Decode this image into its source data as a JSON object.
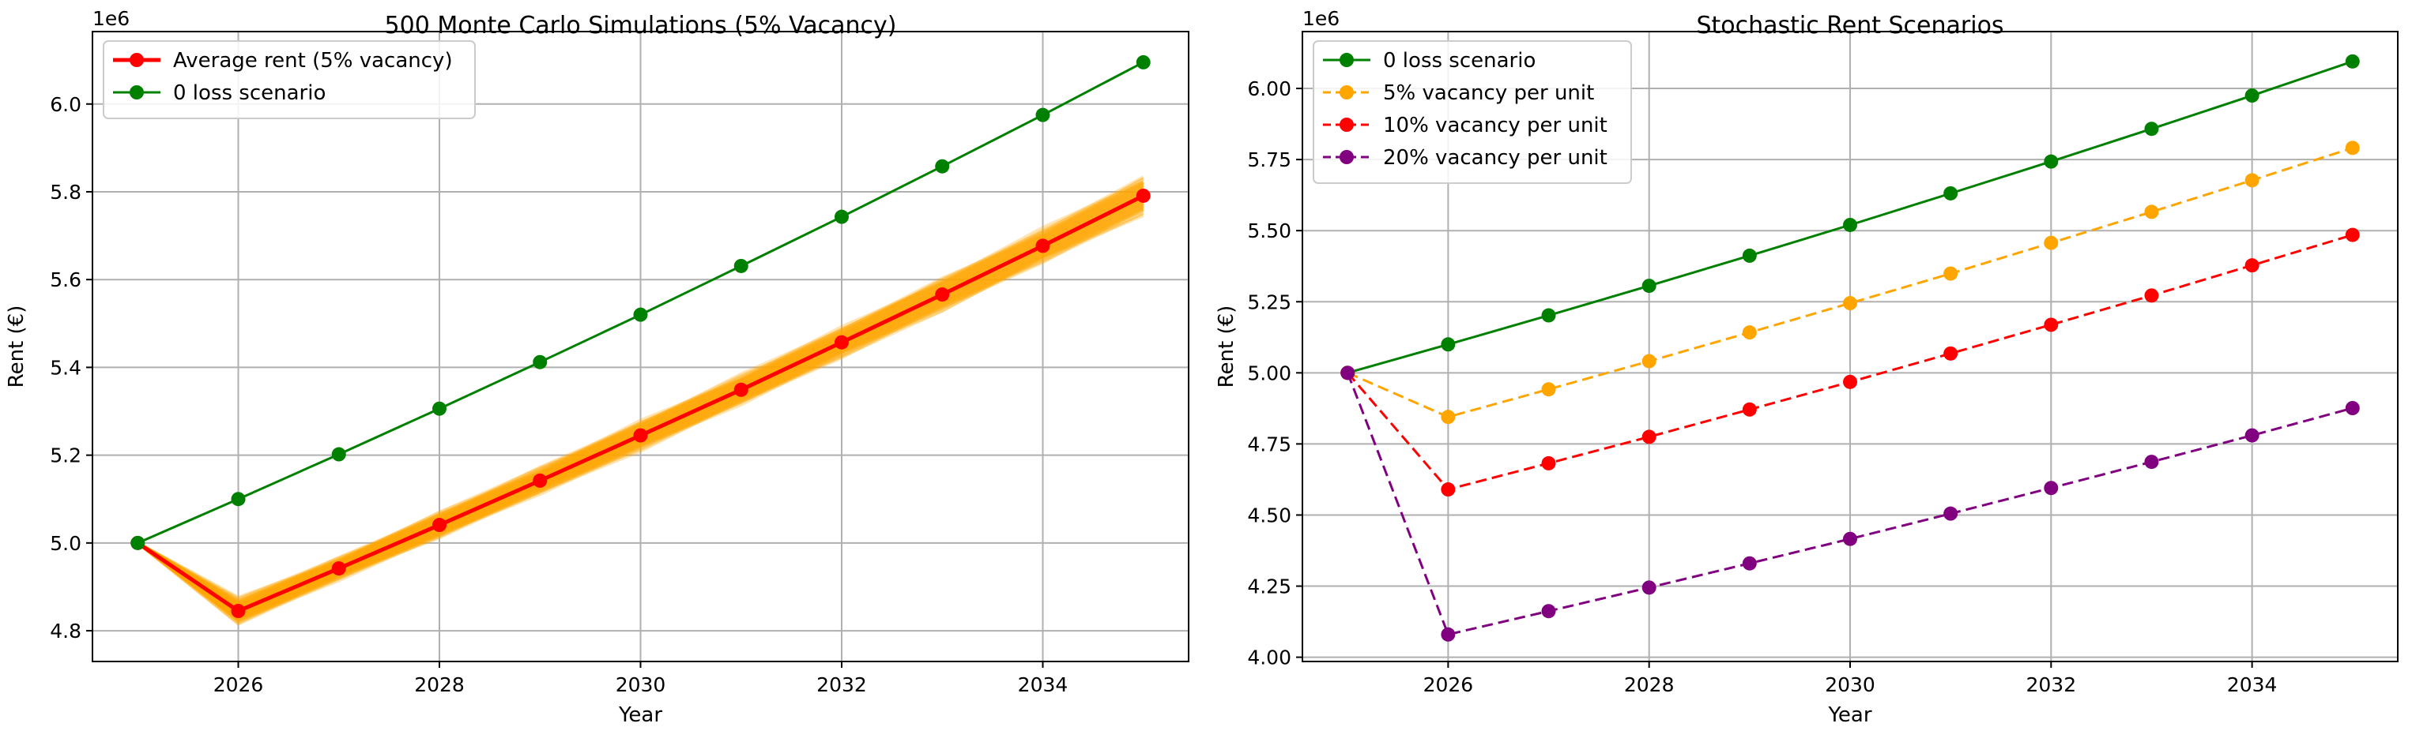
{
  "chart_data": [
    {
      "type": "line",
      "title": "500 Monte Carlo Simulations (5% Vacancy)",
      "xlabel": "Year",
      "ylabel": "Rent (€)",
      "y_offset_label": "1e6",
      "xlim": [
        2024.55,
        2035.45
      ],
      "ylim": [
        4.73,
        6.165
      ],
      "xticks": [
        2026,
        2028,
        2030,
        2032,
        2034
      ],
      "yticks": [
        4.8,
        5.0,
        5.2,
        5.4,
        5.6,
        5.8,
        6.0
      ],
      "ytick_labels": [
        "4.8",
        "5.0",
        "5.2",
        "5.4",
        "5.6",
        "5.8",
        "6.0"
      ],
      "grid": true,
      "legend_position": "top-left",
      "x": [
        2025,
        2026,
        2027,
        2028,
        2029,
        2030,
        2031,
        2032,
        2033,
        2034,
        2035
      ],
      "simulation_band": {
        "color": "#ffa500",
        "count": 500,
        "center": [
          5.0,
          4.845,
          4.942,
          5.041,
          5.142,
          5.245,
          5.349,
          5.457,
          5.566,
          5.677,
          5.791
        ],
        "spread": [
          0.0,
          0.035,
          0.03,
          0.035,
          0.035,
          0.04,
          0.04,
          0.04,
          0.045,
          0.045,
          0.05
        ]
      },
      "series": [
        {
          "name": "Average rent (5% vacancy)",
          "color": "#ff0000",
          "dash": "solid",
          "width": 5,
          "values": [
            5.0,
            4.845,
            4.942,
            5.041,
            5.142,
            5.245,
            5.349,
            5.457,
            5.566,
            5.677,
            5.791
          ]
        },
        {
          "name": "0 loss scenario",
          "color": "#008000",
          "dash": "solid",
          "width": 3,
          "values": [
            5.0,
            5.1,
            5.202,
            5.306,
            5.412,
            5.52,
            5.631,
            5.743,
            5.858,
            5.975,
            6.095
          ]
        }
      ]
    },
    {
      "type": "line",
      "title": "Stochastic Rent Scenarios",
      "xlabel": "Year",
      "ylabel": "Rent (€)",
      "y_offset_label": "1e6",
      "xlim": [
        2024.55,
        2035.45
      ],
      "ylim": [
        3.985,
        6.2
      ],
      "xticks": [
        2026,
        2028,
        2030,
        2032,
        2034
      ],
      "yticks": [
        4.0,
        4.25,
        4.5,
        4.75,
        5.0,
        5.25,
        5.5,
        5.75,
        6.0
      ],
      "ytick_labels": [
        "4.00",
        "4.25",
        "4.50",
        "4.75",
        "5.00",
        "5.25",
        "5.50",
        "5.75",
        "6.00"
      ],
      "grid": true,
      "legend_position": "top-left",
      "x": [
        2025,
        2026,
        2027,
        2028,
        2029,
        2030,
        2031,
        2032,
        2033,
        2034,
        2035
      ],
      "series": [
        {
          "name": "0 loss scenario",
          "color": "#008000",
          "dash": "solid",
          "width": 3,
          "values": [
            5.0,
            5.1,
            5.202,
            5.306,
            5.412,
            5.52,
            5.631,
            5.743,
            5.858,
            5.975,
            6.095
          ]
        },
        {
          "name": "5% vacancy per unit",
          "color": "#ffa500",
          "dash": "dashed",
          "width": 3,
          "values": [
            5.0,
            4.845,
            4.942,
            5.041,
            5.142,
            5.245,
            5.349,
            5.457,
            5.566,
            5.677,
            5.791
          ]
        },
        {
          "name": "10% vacancy per unit",
          "color": "#ff0000",
          "dash": "dashed",
          "width": 3,
          "values": [
            5.0,
            4.59,
            4.682,
            4.775,
            4.871,
            4.968,
            5.068,
            5.169,
            5.272,
            5.378,
            5.485
          ]
        },
        {
          "name": "20% vacancy per unit",
          "color": "#800080",
          "dash": "dashed",
          "width": 3,
          "values": [
            5.0,
            4.08,
            4.162,
            4.245,
            4.33,
            4.416,
            4.505,
            4.595,
            4.687,
            4.78,
            4.876
          ]
        }
      ]
    }
  ]
}
